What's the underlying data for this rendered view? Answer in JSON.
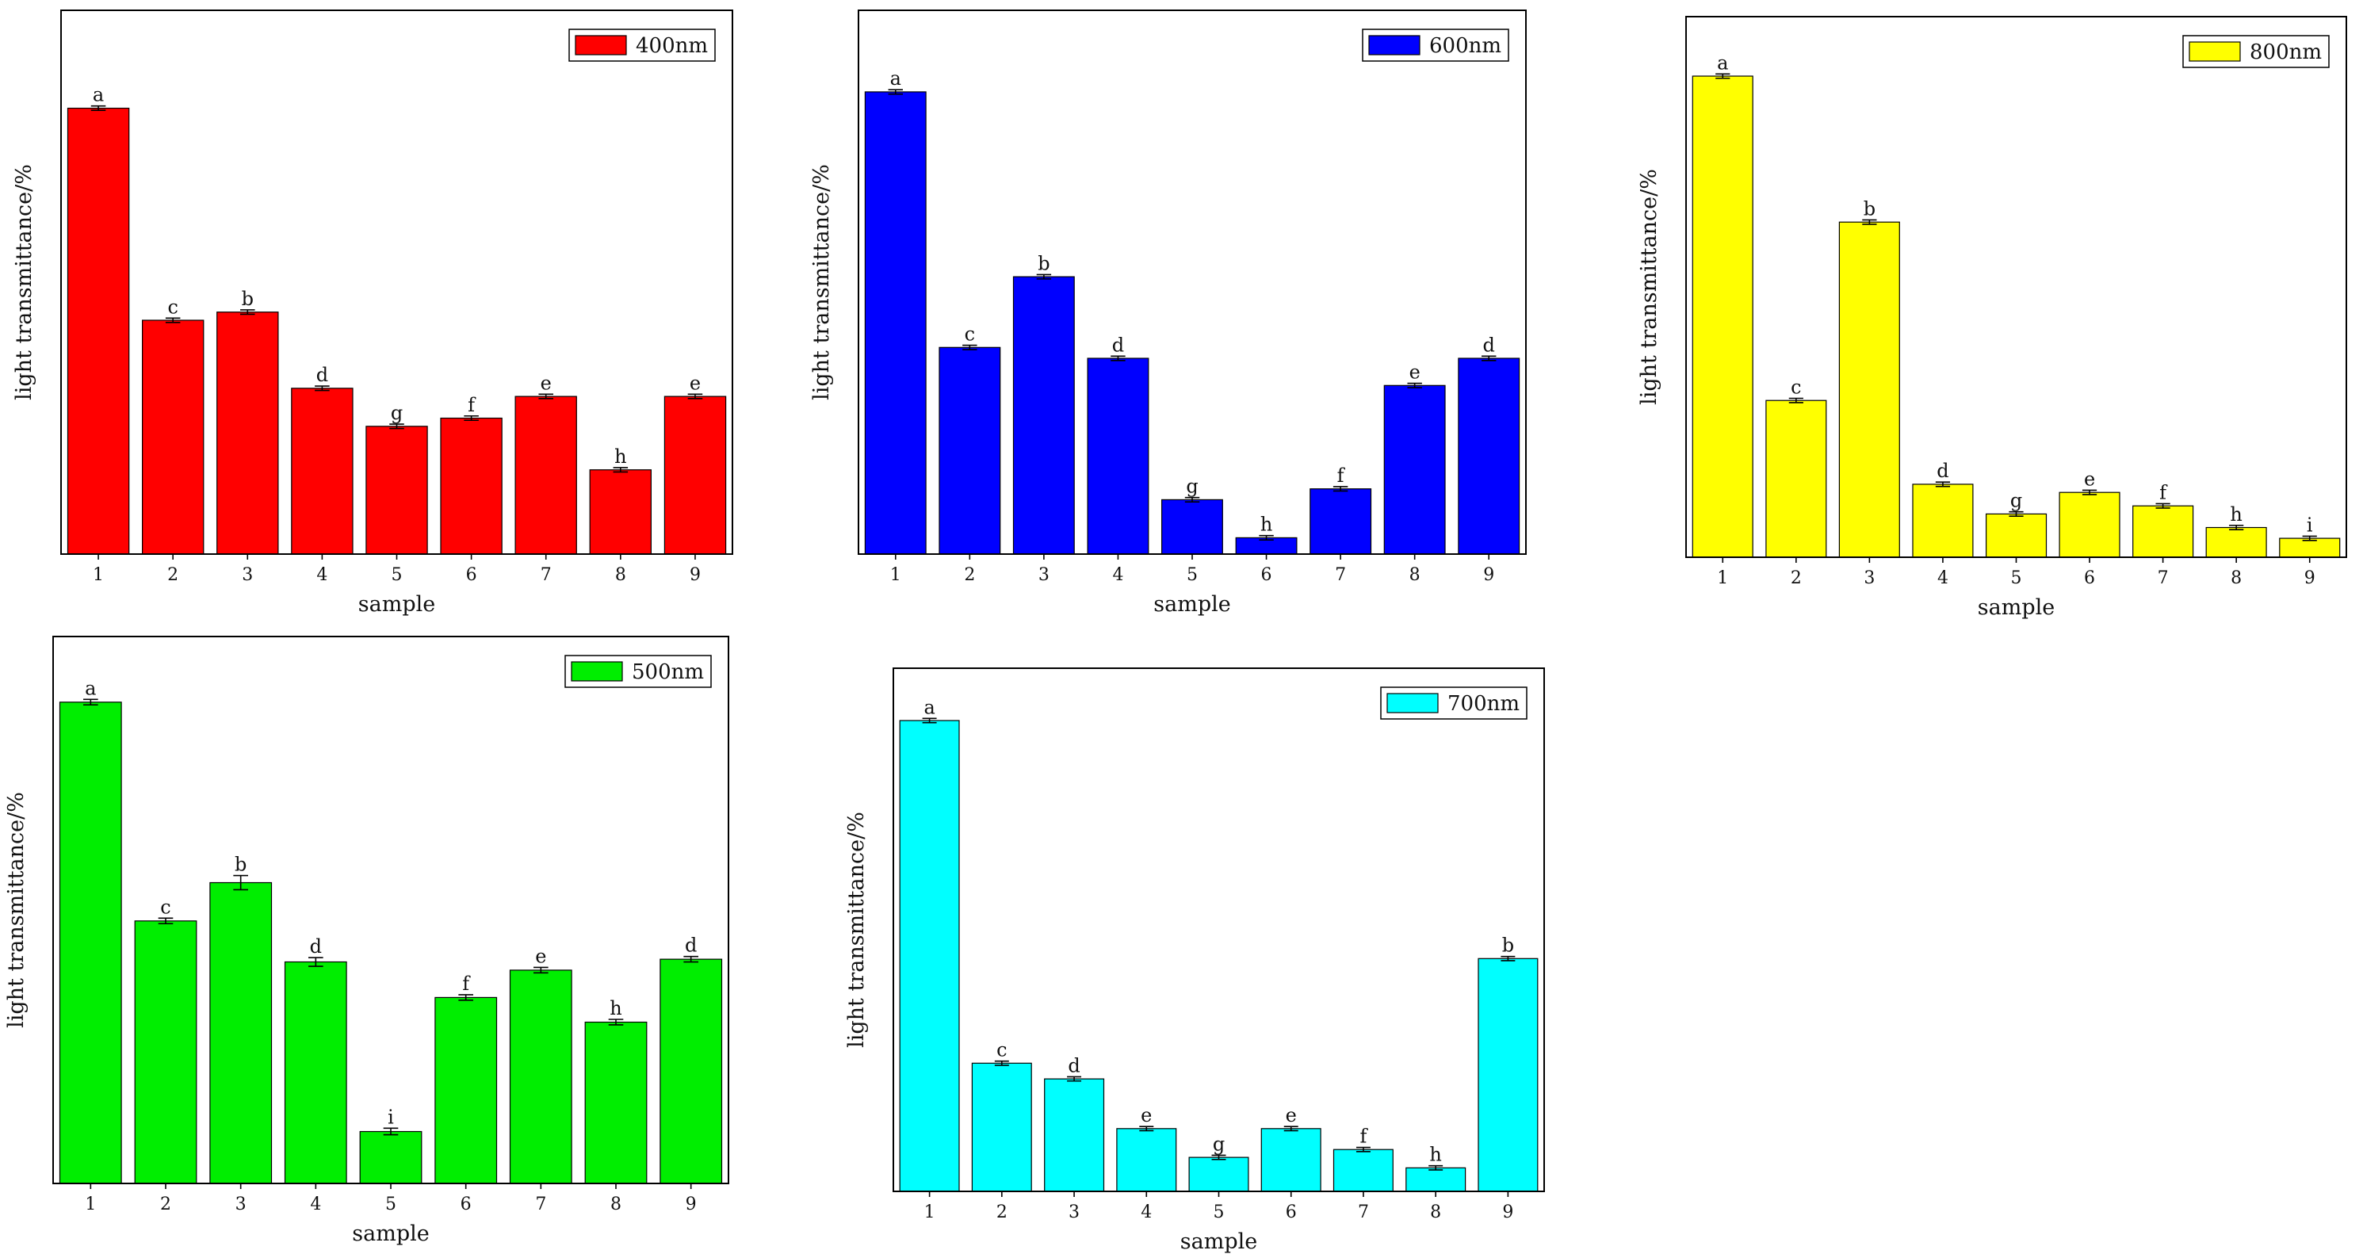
{
  "chart_data": [
    {
      "type": "bar",
      "legend": "400nm",
      "color": "#ff0000",
      "categories": [
        "1",
        "2",
        "3",
        "4",
        "5",
        "6",
        "7",
        "8",
        "9"
      ],
      "values": [
        82,
        43,
        44.5,
        30.5,
        23.5,
        25,
        29,
        15.5,
        29
      ],
      "errors": [
        0.4,
        0.4,
        0.4,
        0.4,
        0.4,
        0.4,
        0.4,
        0.4,
        0.4
      ],
      "letters": [
        "a",
        "c",
        "b",
        "d",
        "g",
        "f",
        "e",
        "h",
        "e"
      ],
      "xlabel": "sample",
      "ylabel": "light transmittance/%",
      "ylim": [
        0,
        100
      ],
      "legend_position": "top-right"
    },
    {
      "type": "bar",
      "legend": "600nm",
      "color": "#0000ff",
      "categories": [
        "1",
        "2",
        "3",
        "4",
        "5",
        "6",
        "7",
        "8",
        "9"
      ],
      "values": [
        85,
        38,
        51,
        36,
        10,
        3,
        12,
        31,
        36
      ],
      "errors": [
        0.4,
        0.4,
        0.4,
        0.4,
        0.4,
        0.4,
        0.4,
        0.4,
        0.4
      ],
      "letters": [
        "a",
        "c",
        "b",
        "d",
        "g",
        "h",
        "f",
        "e",
        "d"
      ],
      "xlabel": "sample",
      "ylabel": "light transmittance/%",
      "ylim": [
        0,
        100
      ],
      "legend_position": "top-right"
    },
    {
      "type": "bar",
      "legend": "800nm",
      "color": "#ffff00",
      "categories": [
        "1",
        "2",
        "3",
        "4",
        "5",
        "6",
        "7",
        "8",
        "9"
      ],
      "values": [
        89,
        29,
        62,
        13.5,
        8,
        12,
        9.5,
        5.5,
        3.5
      ],
      "errors": [
        0.4,
        0.4,
        0.4,
        0.4,
        0.4,
        0.4,
        0.4,
        0.4,
        0.4
      ],
      "letters": [
        "a",
        "c",
        "b",
        "d",
        "g",
        "e",
        "f",
        "h",
        "i"
      ],
      "xlabel": "sample",
      "ylabel": "light transmittance/%",
      "ylim": [
        0,
        100
      ],
      "legend_position": "top-right"
    },
    {
      "type": "bar",
      "legend": "500nm",
      "color": "#00ee00",
      "categories": [
        "1",
        "2",
        "3",
        "4",
        "5",
        "6",
        "7",
        "8",
        "9"
      ],
      "values": [
        88,
        48,
        55,
        40.5,
        9.5,
        34,
        39,
        29.5,
        41
      ],
      "errors": [
        0.5,
        0.5,
        1.3,
        0.8,
        0.6,
        0.5,
        0.5,
        0.5,
        0.5
      ],
      "letters": [
        "a",
        "c",
        "b",
        "d",
        "i",
        "f",
        "e",
        "h",
        "d"
      ],
      "xlabel": "sample",
      "ylabel": "light transmittance/%",
      "ylim": [
        0,
        100
      ],
      "legend_position": "top-right"
    },
    {
      "type": "bar",
      "legend": "700nm",
      "color": "#00ffff",
      "categories": [
        "1",
        "2",
        "3",
        "4",
        "5",
        "6",
        "7",
        "8",
        "9"
      ],
      "values": [
        90,
        24.5,
        21.5,
        12,
        6.5,
        12,
        8,
        4.5,
        44.5
      ],
      "errors": [
        0.4,
        0.4,
        0.4,
        0.4,
        0.4,
        0.4,
        0.4,
        0.4,
        0.4
      ],
      "letters": [
        "a",
        "c",
        "d",
        "e",
        "g",
        "e",
        "f",
        "h",
        "b"
      ],
      "xlabel": "sample",
      "ylabel": "light transmittance/%",
      "ylim": [
        0,
        100
      ],
      "legend_position": "top-right"
    }
  ]
}
